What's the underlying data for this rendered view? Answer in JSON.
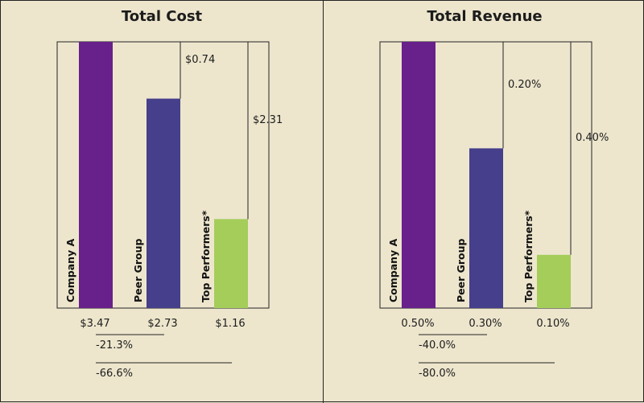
{
  "chart_data": [
    {
      "type": "bar",
      "title": "Total Cost",
      "categories": [
        "Company A",
        "Peer Group",
        "Top Performers*"
      ],
      "values": [
        3.47,
        2.73,
        1.16
      ],
      "value_labels": [
        "$3.47",
        "$2.73",
        "$1.16"
      ],
      "gap_labels": [
        "$0.74",
        "$2.31"
      ],
      "pct_labels": [
        "-21.3%",
        "-66.6%"
      ],
      "colors": [
        "#68208a",
        "#463f8b",
        "#a4cd5a"
      ],
      "ylim": [
        0,
        3.47
      ],
      "grid": false
    },
    {
      "type": "bar",
      "title": "Total Revenue",
      "categories": [
        "Company A",
        "Peer Group",
        "Top Performers*"
      ],
      "values": [
        0.5,
        0.3,
        0.1
      ],
      "value_labels": [
        "0.50%",
        "0.30%",
        "0.10%"
      ],
      "gap_labels": [
        "0.20%",
        "0.40%"
      ],
      "pct_labels": [
        "-40.0%",
        "-80.0%"
      ],
      "colors": [
        "#68208a",
        "#463f8b",
        "#a4cd5a"
      ],
      "ylim": [
        0,
        0.5
      ],
      "grid": false
    }
  ]
}
